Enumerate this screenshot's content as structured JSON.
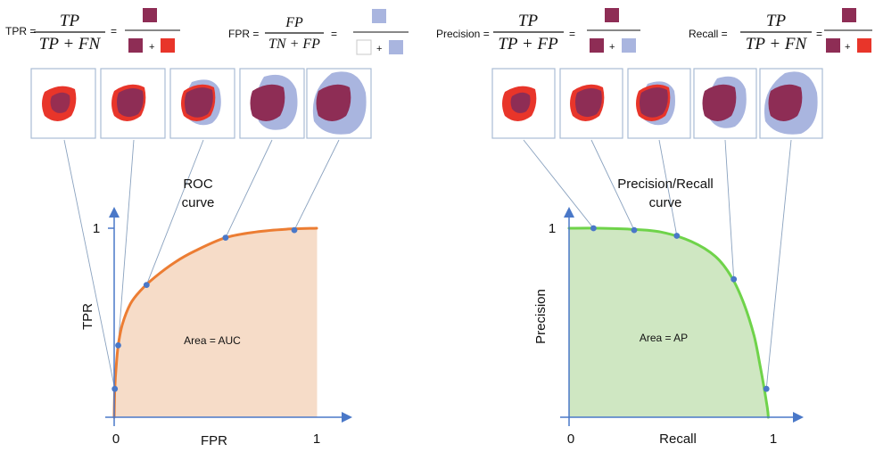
{
  "formulas": {
    "tpr": {
      "label": "TPR =",
      "numerator": "TP",
      "denominator": "TP + FN",
      "eq": "=",
      "plus": "+"
    },
    "fpr": {
      "label": "FPR =",
      "numerator": "FP",
      "denominator": "TN + FP",
      "eq": "=",
      "plus": "+"
    },
    "precision": {
      "label": "Precision =",
      "numerator": "TP",
      "denominator": "TP + FP",
      "eq": "=",
      "plus": "+"
    },
    "recall": {
      "label": "Recall =",
      "numerator": "TP",
      "denominator": "TP + FN",
      "eq": "=",
      "plus": "+"
    }
  },
  "colors": {
    "tp": "#8e2d55",
    "fn": "#e8352a",
    "fp": "#a9b5df",
    "tn": "#ffffff",
    "roc_curve": "#ec7d33",
    "roc_fill": "#f6dcc8",
    "pr_curve": "#6fd34a",
    "pr_fill": "#cfe7c2",
    "point": "#4a78c8",
    "axis": "#4a78c8",
    "panel_border": "#a9bcd4",
    "guide": "#8aa2bf"
  },
  "chart_data": [
    {
      "type": "area",
      "name": "roc",
      "curve_label_line1": "ROC",
      "curve_label_line2": "curve",
      "area_label": "Area = AUC",
      "xlabel": "FPR",
      "ylabel": "TPR",
      "x_tick_labels": [
        "0",
        "1"
      ],
      "y_tick_labels": [
        "1"
      ],
      "xlim": [
        0,
        1
      ],
      "ylim": [
        0,
        1
      ],
      "curve": [
        [
          0,
          0
        ],
        [
          0.003,
          0.15
        ],
        [
          0.01,
          0.27
        ],
        [
          0.02,
          0.38
        ],
        [
          0.04,
          0.49
        ],
        [
          0.08,
          0.6
        ],
        [
          0.13,
          0.67
        ],
        [
          0.2,
          0.74
        ],
        [
          0.3,
          0.82
        ],
        [
          0.4,
          0.88
        ],
        [
          0.55,
          0.95
        ],
        [
          0.7,
          0.98
        ],
        [
          0.85,
          0.995
        ],
        [
          1,
          1
        ]
      ],
      "points": [
        [
          0.003,
          0.15
        ],
        [
          0.02,
          0.38
        ],
        [
          0.16,
          0.7
        ],
        [
          0.55,
          0.95
        ],
        [
          0.89,
          0.99
        ]
      ]
    },
    {
      "type": "area",
      "name": "precision-recall",
      "curve_label_line1": "Precision/Recall",
      "curve_label_line2": "curve",
      "area_label": "Area = AP",
      "xlabel": "Recall",
      "ylabel": "Precision",
      "x_tick_labels": [
        "0",
        "1"
      ],
      "y_tick_labels": [
        "1"
      ],
      "xlim": [
        0,
        1
      ],
      "ylim": [
        0,
        1
      ],
      "curve": [
        [
          0,
          1
        ],
        [
          0.15,
          1
        ],
        [
          0.3,
          0.995
        ],
        [
          0.45,
          0.98
        ],
        [
          0.6,
          0.93
        ],
        [
          0.72,
          0.85
        ],
        [
          0.8,
          0.74
        ],
        [
          0.86,
          0.6
        ],
        [
          0.91,
          0.43
        ],
        [
          0.94,
          0.27
        ],
        [
          0.96,
          0.15
        ],
        [
          0.975,
          0.05
        ],
        [
          0.98,
          0
        ]
      ],
      "points": [
        [
          0.12,
          1
        ],
        [
          0.32,
          0.99
        ],
        [
          0.53,
          0.96
        ],
        [
          0.81,
          0.73
        ],
        [
          0.97,
          0.15
        ]
      ]
    }
  ]
}
